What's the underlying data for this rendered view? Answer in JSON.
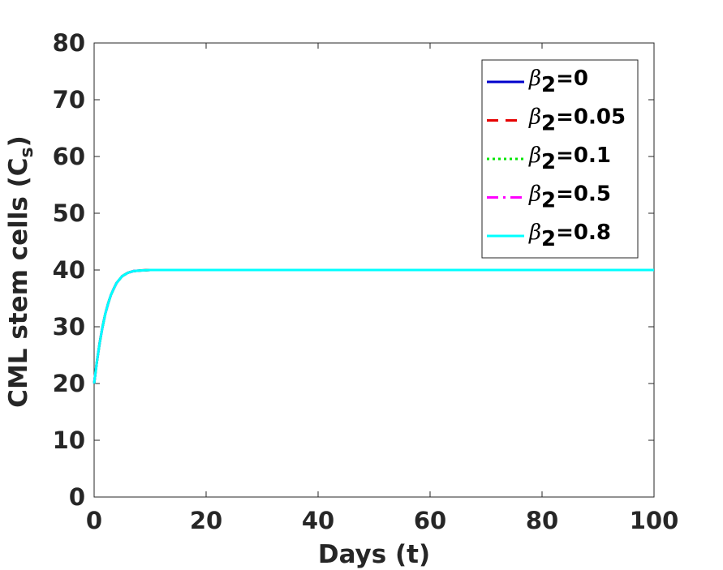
{
  "chart_data": {
    "type": "line",
    "xlabel": "Days (t)",
    "ylabel": "CML stem cells (C",
    "ylabel_sub": "s",
    "ylabel_close": ")",
    "xlim": [
      0,
      100
    ],
    "ylim": [
      0,
      80
    ],
    "xticks": [
      0,
      20,
      40,
      60,
      80,
      100
    ],
    "yticks": [
      0,
      10,
      20,
      30,
      40,
      50,
      60,
      70,
      80
    ],
    "xtick_labels": [
      "0",
      "20",
      "40",
      "60",
      "80",
      "100"
    ],
    "ytick_labels": [
      "0",
      "10",
      "20",
      "30",
      "40",
      "50",
      "60",
      "70",
      "80"
    ],
    "grid": false,
    "legend_position": "top-right",
    "series": [
      {
        "symbol": "β",
        "sub": "2",
        "value": "=0",
        "color": "#0000cc",
        "dash": "solid",
        "x": [
          0,
          0.5,
          1,
          1.5,
          2,
          2.5,
          3,
          3.5,
          4,
          5,
          6,
          7,
          8,
          10,
          15,
          20,
          30,
          40,
          50,
          60,
          70,
          80,
          90,
          100
        ],
        "y": [
          20,
          23.9,
          27.2,
          30.0,
          32.3,
          34.1,
          35.6,
          36.7,
          37.7,
          38.9,
          39.5,
          39.8,
          39.9,
          40.0,
          40.0,
          40.0,
          40.0,
          40.0,
          40.0,
          40.0,
          40.0,
          40.0,
          40.0,
          40.0
        ]
      },
      {
        "symbol": "β",
        "sub": "2",
        "value": "=0.05",
        "color": "#e60000",
        "dash": "dashed",
        "x": [
          0,
          0.5,
          1,
          1.5,
          2,
          2.5,
          3,
          3.5,
          4,
          5,
          6,
          7,
          8,
          10,
          15,
          20,
          30,
          40,
          50,
          60,
          70,
          80,
          90,
          100
        ],
        "y": [
          20,
          23.9,
          27.2,
          30.0,
          32.3,
          34.1,
          35.6,
          36.7,
          37.7,
          38.9,
          39.5,
          39.8,
          39.9,
          40.0,
          40.0,
          40.0,
          40.0,
          40.0,
          40.0,
          40.0,
          40.0,
          40.0,
          40.0,
          40.0
        ]
      },
      {
        "symbol": "β",
        "sub": "2",
        "value": "=0.1",
        "color": "#00e600",
        "dash": "dotted",
        "x": [
          0,
          0.5,
          1,
          1.5,
          2,
          2.5,
          3,
          3.5,
          4,
          5,
          6,
          7,
          8,
          10,
          15,
          20,
          30,
          40,
          50,
          60,
          70,
          80,
          90,
          100
        ],
        "y": [
          20,
          23.9,
          27.2,
          30.0,
          32.3,
          34.1,
          35.6,
          36.7,
          37.7,
          38.9,
          39.5,
          39.8,
          39.9,
          40.0,
          40.0,
          40.0,
          40.0,
          40.0,
          40.0,
          40.0,
          40.0,
          40.0,
          40.0,
          40.0
        ]
      },
      {
        "symbol": "β",
        "sub": "2",
        "value": "=0.5",
        "color": "#ff00ff",
        "dash": "dashdot",
        "x": [
          0,
          0.5,
          1,
          1.5,
          2,
          2.5,
          3,
          3.5,
          4,
          5,
          6,
          7,
          8,
          10,
          15,
          20,
          30,
          40,
          50,
          60,
          70,
          80,
          90,
          100
        ],
        "y": [
          20,
          23.9,
          27.2,
          30.0,
          32.3,
          34.1,
          35.6,
          36.7,
          37.7,
          38.9,
          39.5,
          39.8,
          39.9,
          40.0,
          40.0,
          40.0,
          40.0,
          40.0,
          40.0,
          40.0,
          40.0,
          40.0,
          40.0,
          40.0
        ]
      },
      {
        "symbol": "β",
        "sub": "2",
        "value": "=0.8",
        "color": "#00ffff",
        "dash": "solid",
        "x": [
          0,
          0.5,
          1,
          1.5,
          2,
          2.5,
          3,
          3.5,
          4,
          5,
          6,
          7,
          8,
          10,
          15,
          20,
          30,
          40,
          50,
          60,
          70,
          80,
          90,
          100
        ],
        "y": [
          20,
          23.9,
          27.2,
          30.0,
          32.3,
          34.1,
          35.6,
          36.7,
          37.7,
          38.9,
          39.5,
          39.8,
          39.9,
          40.0,
          40.0,
          40.0,
          40.0,
          40.0,
          40.0,
          40.0,
          40.0,
          40.0,
          40.0,
          40.0
        ]
      }
    ]
  }
}
